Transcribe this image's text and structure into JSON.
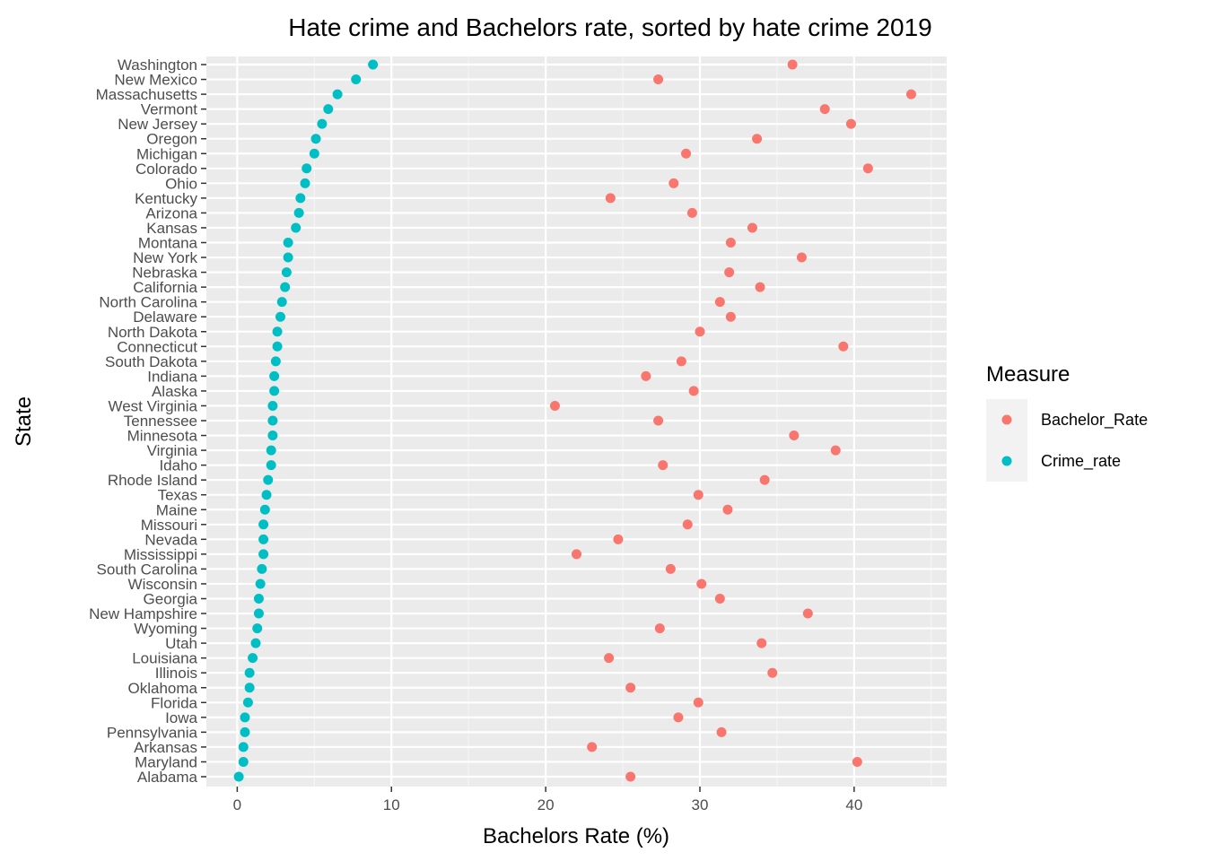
{
  "chart_data": {
    "type": "scatter",
    "title": "Hate crime and Bachelors rate, sorted by hate crime 2019",
    "xlabel": "Bachelors Rate (%)",
    "ylabel": "State",
    "xlim": [
      -2,
      46
    ],
    "x_ticks": [
      0,
      10,
      20,
      30,
      40
    ],
    "grid": true,
    "legend": {
      "title": "Measure",
      "placement": "right",
      "entries": [
        {
          "name": "Bachelor_Rate",
          "color": "#F8766D"
        },
        {
          "name": "Crime_rate",
          "color": "#00BFC4"
        }
      ]
    },
    "categories": [
      "Washington",
      "New Mexico",
      "Massachusetts",
      "Vermont",
      "New Jersey",
      "Oregon",
      "Michigan",
      "Colorado",
      "Ohio",
      "Kentucky",
      "Arizona",
      "Kansas",
      "Montana",
      "New York",
      "Nebraska",
      "California",
      "North Carolina",
      "Delaware",
      "North Dakota",
      "Connecticut",
      "South Dakota",
      "Indiana",
      "Alaska",
      "West Virginia",
      "Tennessee",
      "Minnesota",
      "Virginia",
      "Idaho",
      "Rhode Island",
      "Texas",
      "Maine",
      "Missouri",
      "Nevada",
      "Mississippi",
      "South Carolina",
      "Wisconsin",
      "Georgia",
      "New Hampshire",
      "Wyoming",
      "Utah",
      "Louisiana",
      "Illinois",
      "Oklahoma",
      "Florida",
      "Iowa",
      "Pennsylvania",
      "Arkansas",
      "Maryland",
      "Alabama"
    ],
    "series": [
      {
        "name": "Bachelor_Rate",
        "color": "#F8766D",
        "values": [
          36.0,
          27.3,
          43.7,
          38.1,
          39.8,
          33.7,
          29.1,
          40.9,
          28.3,
          24.2,
          29.5,
          33.4,
          32.0,
          36.6,
          31.9,
          33.9,
          31.3,
          32.0,
          30.0,
          39.3,
          28.8,
          26.5,
          29.6,
          20.6,
          27.3,
          36.1,
          38.8,
          27.6,
          34.2,
          29.9,
          31.8,
          29.2,
          24.7,
          22.0,
          28.1,
          30.1,
          31.3,
          37.0,
          27.4,
          34.0,
          24.1,
          34.7,
          25.5,
          29.9,
          28.6,
          31.4,
          23.0,
          40.2,
          25.5
        ]
      },
      {
        "name": "Crime_rate",
        "color": "#00BFC4",
        "values": [
          8.8,
          7.7,
          6.5,
          5.9,
          5.5,
          5.1,
          5.0,
          4.5,
          4.4,
          4.1,
          4.0,
          3.8,
          3.3,
          3.3,
          3.2,
          3.1,
          2.9,
          2.8,
          2.6,
          2.6,
          2.5,
          2.4,
          2.4,
          2.3,
          2.3,
          2.3,
          2.2,
          2.2,
          2.0,
          1.9,
          1.8,
          1.7,
          1.7,
          1.7,
          1.6,
          1.5,
          1.4,
          1.4,
          1.3,
          1.2,
          1.0,
          0.8,
          0.8,
          0.7,
          0.5,
          0.5,
          0.4,
          0.4,
          0.1
        ]
      }
    ]
  }
}
